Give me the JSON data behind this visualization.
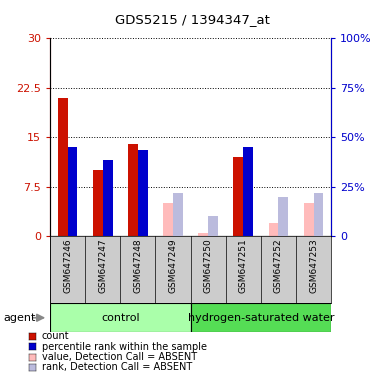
{
  "title": "GDS5215 / 1394347_at",
  "samples": [
    "GSM647246",
    "GSM647247",
    "GSM647248",
    "GSM647249",
    "GSM647250",
    "GSM647251",
    "GSM647252",
    "GSM647253"
  ],
  "count_values": [
    21.0,
    10.0,
    14.0,
    null,
    null,
    12.0,
    null,
    null
  ],
  "rank_values": [
    13.5,
    11.5,
    13.0,
    null,
    null,
    13.5,
    null,
    null
  ],
  "value_absent": [
    null,
    null,
    null,
    5.0,
    0.5,
    null,
    2.0,
    5.0
  ],
  "rank_absent": [
    null,
    null,
    null,
    6.5,
    3.0,
    null,
    6.0,
    6.5
  ],
  "ylim_left": [
    0,
    30
  ],
  "ylim_right": [
    0,
    100
  ],
  "yticks_left": [
    0,
    7.5,
    15,
    22.5,
    30
  ],
  "ytick_labels_left": [
    "0",
    "7.5",
    "15",
    "22.5",
    "30"
  ],
  "ytick_labels_right": [
    "0",
    "25%",
    "50%",
    "75%",
    "100%"
  ],
  "color_count": "#cc1100",
  "color_rank": "#0000cc",
  "color_value_absent": "#ffbbbb",
  "color_rank_absent": "#bbbbdd",
  "group1_label": "control",
  "group2_label": "hydrogen-saturated water",
  "group1_color": "#aaffaa",
  "group2_color": "#55dd55",
  "agent_label": "agent",
  "bar_width": 0.32
}
